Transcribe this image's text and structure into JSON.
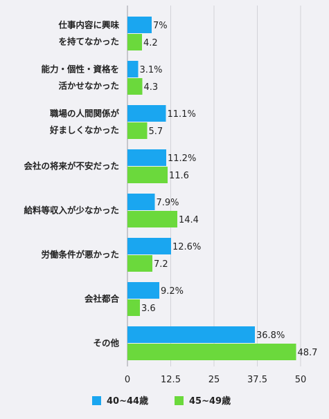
{
  "chart_data": {
    "type": "bar",
    "orientation": "horizontal",
    "categories": [
      [
        "仕事内容に興味",
        "を持てなかった"
      ],
      [
        "能力・個性・資格を",
        "活かせなかった"
      ],
      [
        "職場の人間関係が",
        "好ましくなかった"
      ],
      [
        "会社の将来が不安だった"
      ],
      [
        "給料等収入が少なかった"
      ],
      [
        "労働条件が悪かった"
      ],
      [
        "会社都合"
      ],
      [
        "その他"
      ]
    ],
    "series": [
      {
        "name": "40~44歳",
        "color": "#1aa6f0",
        "values": [
          7,
          3.1,
          11.1,
          11.2,
          7.9,
          12.6,
          9.2,
          36.8
        ],
        "labels": [
          "7%",
          "3.1%",
          "11.1%",
          "11.2%",
          "7.9%",
          "12.6%",
          "9.2%",
          "36.8%"
        ]
      },
      {
        "name": "45~49歳",
        "color": "#6bd93c",
        "values": [
          4.2,
          4.3,
          5.7,
          11.6,
          14.4,
          7.2,
          3.6,
          48.7
        ],
        "labels": [
          "4.2",
          "4.3",
          "5.7",
          "11.6",
          "14.4",
          "7.2",
          "3.6",
          "48.7"
        ]
      }
    ],
    "xlim": [
      0,
      50
    ],
    "xticks": [
      0,
      12.5,
      25,
      37.5,
      50
    ],
    "xtick_labels": [
      "0",
      "12.5",
      "25",
      "37.5",
      "50"
    ],
    "grid": true,
    "legend": "bottom",
    "gridline_color": "#d2d2d8"
  }
}
